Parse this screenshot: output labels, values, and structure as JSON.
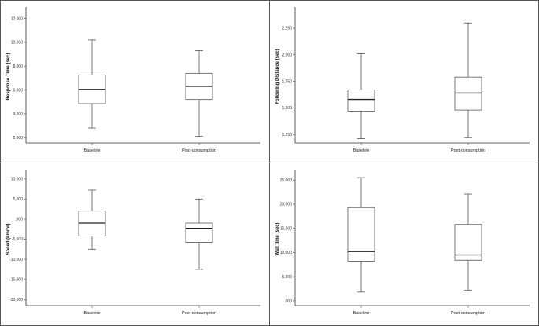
{
  "chart_data": [
    {
      "type": "boxplot",
      "ylabel": "Response Time (sec)",
      "categories": [
        "Baseline",
        "Post-consumption"
      ],
      "yticks": [
        2000,
        4000,
        6000,
        8000,
        10000,
        12000
      ],
      "ytick_labels": [
        "2,000",
        "4,000",
        "6,000",
        "8,000",
        "10,000",
        "12,000"
      ],
      "ylim": [
        1550,
        12700
      ],
      "boxes": [
        {
          "min": 2800,
          "q1": 4850,
          "median": 6050,
          "q3": 7250,
          "max": 10200
        },
        {
          "min": 2100,
          "q1": 5200,
          "median": 6300,
          "q3": 7400,
          "max": 9300
        }
      ]
    },
    {
      "type": "boxplot",
      "ylabel": "Following Distance (sec)",
      "categories": [
        "Baseline",
        "Post-consumption"
      ],
      "yticks": [
        1.25,
        1.5,
        1.75,
        2.0,
        2.25
      ],
      "ytick_labels": [
        "1,250",
        "1,500",
        "1,750",
        "2,000",
        "2,250"
      ],
      "ylim": [
        1.17,
        2.42
      ],
      "boxes": [
        {
          "min": 1.21,
          "q1": 1.47,
          "median": 1.58,
          "q3": 1.67,
          "max": 2.01
        },
        {
          "min": 1.22,
          "q1": 1.48,
          "median": 1.64,
          "q3": 1.79,
          "max": 2.3
        }
      ]
    },
    {
      "type": "boxplot",
      "ylabel": "Speed (km/hr)",
      "categories": [
        "Baseline",
        "Post-consumption"
      ],
      "yticks": [
        -20,
        -15,
        -10,
        -5,
        0,
        5,
        10
      ],
      "ytick_labels": [
        "-20,000",
        "-15,000",
        "-10,000",
        "-5,000",
        ",000",
        "5,000",
        "10,000"
      ],
      "ylim": [
        -21.5,
        11.5
      ],
      "boxes": [
        {
          "min": -7.5,
          "q1": -4.2,
          "median": -1.0,
          "q3": 2.0,
          "max": 7.2
        },
        {
          "min": -12.5,
          "q1": -5.8,
          "median": -2.3,
          "q3": -1.0,
          "max": 5.0
        }
      ]
    },
    {
      "type": "boxplot",
      "ylabel": "Wait time (sec)",
      "categories": [
        "Baseline",
        "Post-consumption"
      ],
      "yticks": [
        0,
        5,
        10,
        15,
        20,
        25
      ],
      "ytick_labels": [
        ",000",
        "5,000",
        "10,000",
        "15,000",
        "20,000",
        "25,000"
      ],
      "ylim": [
        -1,
        26.5
      ],
      "boxes": [
        {
          "min": 1.8,
          "q1": 8.2,
          "median": 10.2,
          "q3": 19.3,
          "max": 25.5
        },
        {
          "min": 2.2,
          "q1": 8.4,
          "median": 9.5,
          "q3": 15.8,
          "max": 22.1
        }
      ]
    }
  ]
}
